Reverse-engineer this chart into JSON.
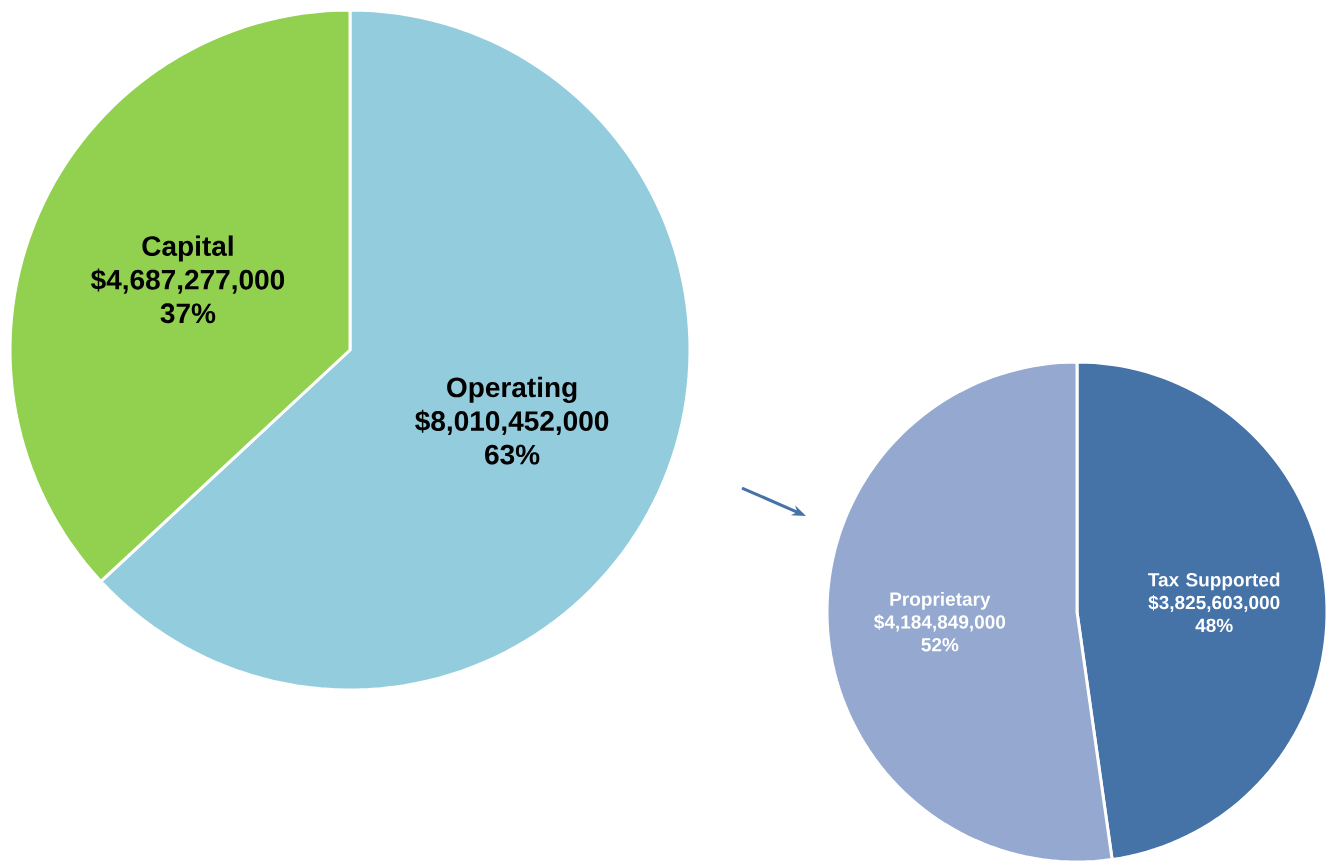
{
  "chart_data": [
    {
      "type": "pie",
      "categories": [
        "Operating",
        "Capital"
      ],
      "values": [
        8010452000,
        4687277000
      ],
      "colors": [
        "#93cddd",
        "#92d050"
      ],
      "value_labels": [
        "$8,010,452,000 63%",
        "$4,687,277,000 37%"
      ]
    },
    {
      "type": "pie",
      "categories": [
        "Tax Supported",
        "Proprietary"
      ],
      "values": [
        3825603000,
        4184849000
      ],
      "colors": [
        "#4572a7",
        "#95a9d0"
      ],
      "value_labels": [
        "$3,825,603,000 48%",
        "$4,184,849,000 52%"
      ]
    }
  ]
}
